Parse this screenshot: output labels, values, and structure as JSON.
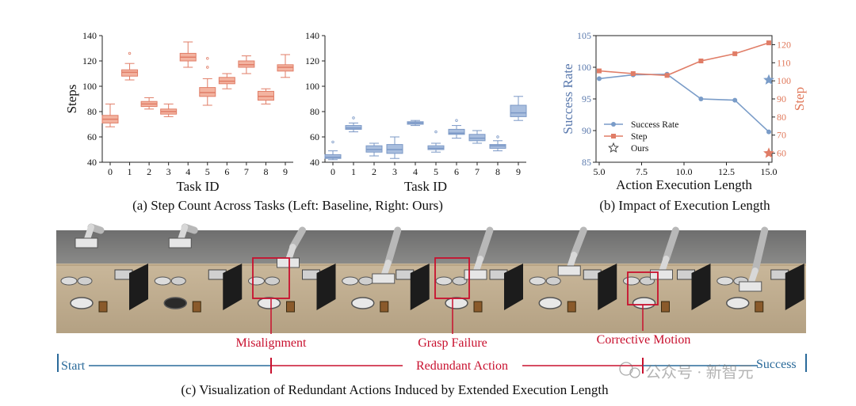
{
  "captions": {
    "a": "(a) Step Count Across Tasks (Left: Baseline, Right: Ours)",
    "b": "(b) Impact of Execution Length",
    "c": "(c)  Visualization of Redundant Actions Induced by Extended Execution Length"
  },
  "timeline": {
    "start": "Start",
    "success": "Success",
    "redundant": "Redundant Action",
    "labels": [
      "Misalignment",
      "Grasp Failure",
      "Corrective Motion"
    ]
  },
  "watermark": "公众号 · 新智元",
  "colors": {
    "baseline_fill": "#f3b3a0",
    "baseline_edge": "#e07d67",
    "ours_fill": "#a9bede",
    "ours_edge": "#7b98c6",
    "success_line": "#7a9cc8",
    "step_line": "#e07d67",
    "left_axis_text": "#5a79ad",
    "right_axis_text": "#e0785a",
    "highlight_red": "#c8102e",
    "timeline_blue": "#2a6a9a"
  },
  "chart_data": [
    {
      "type": "box",
      "name": "Baseline",
      "ylabel": "Steps",
      "xlabel": "Task ID",
      "ylim": [
        40,
        140
      ],
      "yticks": [
        40,
        60,
        80,
        100,
        120,
        140
      ],
      "categories": [
        "0",
        "1",
        "2",
        "3",
        "4",
        "5",
        "6",
        "7",
        "8",
        "9"
      ],
      "boxes": [
        {
          "min": 68,
          "q1": 71,
          "median": 74,
          "q3": 77,
          "max": 86,
          "outliers": []
        },
        {
          "min": 105,
          "q1": 108,
          "median": 111,
          "q3": 113,
          "max": 118,
          "outliers": [
            126
          ]
        },
        {
          "min": 82,
          "q1": 84,
          "median": 86,
          "q3": 88,
          "max": 91,
          "outliers": []
        },
        {
          "min": 76,
          "q1": 78,
          "median": 80,
          "q3": 82,
          "max": 86,
          "outliers": []
        },
        {
          "min": 115,
          "q1": 120,
          "median": 123,
          "q3": 126,
          "max": 135,
          "outliers": []
        },
        {
          "min": 85,
          "q1": 92,
          "median": 95,
          "q3": 99,
          "max": 106,
          "outliers": [
            115,
            122
          ]
        },
        {
          "min": 98,
          "q1": 102,
          "median": 104,
          "q3": 107,
          "max": 110,
          "outliers": []
        },
        {
          "min": 110,
          "q1": 115,
          "median": 117,
          "q3": 120,
          "max": 124,
          "outliers": []
        },
        {
          "min": 86,
          "q1": 89,
          "median": 92,
          "q3": 96,
          "max": 98,
          "outliers": []
        },
        {
          "min": 107,
          "q1": 112,
          "median": 115,
          "q3": 117,
          "max": 125,
          "outliers": []
        }
      ]
    },
    {
      "type": "box",
      "name": "Ours",
      "ylabel": "",
      "xlabel": "Task ID",
      "ylim": [
        40,
        140
      ],
      "yticks": [
        40,
        60,
        80,
        100,
        120,
        140
      ],
      "categories": [
        "0",
        "1",
        "2",
        "3",
        "4",
        "5",
        "6",
        "7",
        "8",
        "9"
      ],
      "boxes": [
        {
          "min": 42,
          "q1": 43,
          "median": 44,
          "q3": 46,
          "max": 49,
          "outliers": [
            56
          ]
        },
        {
          "min": 64,
          "q1": 66,
          "median": 67,
          "q3": 69,
          "max": 71,
          "outliers": [
            75
          ]
        },
        {
          "min": 45,
          "q1": 48,
          "median": 50,
          "q3": 53,
          "max": 55,
          "outliers": []
        },
        {
          "min": 43,
          "q1": 47,
          "median": 50,
          "q3": 54,
          "max": 60,
          "outliers": []
        },
        {
          "min": 69,
          "q1": 70,
          "median": 71,
          "q3": 72,
          "max": 73,
          "outliers": []
        },
        {
          "min": 48,
          "q1": 50,
          "median": 51,
          "q3": 53,
          "max": 55,
          "outliers": [
            64
          ]
        },
        {
          "min": 59,
          "q1": 62,
          "median": 63,
          "q3": 66,
          "max": 69,
          "outliers": [
            73
          ]
        },
        {
          "min": 55,
          "q1": 57,
          "median": 59,
          "q3": 62,
          "max": 65,
          "outliers": []
        },
        {
          "min": 49,
          "q1": 51,
          "median": 53,
          "q3": 54,
          "max": 57,
          "outliers": [
            60
          ]
        },
        {
          "min": 73,
          "q1": 76,
          "median": 79,
          "q3": 85,
          "max": 92,
          "outliers": []
        }
      ]
    },
    {
      "type": "line",
      "xlabel": "Action Execution Length",
      "xlim": [
        5.0,
        15.0
      ],
      "xticks": [
        "5.0",
        "7.5",
        "10.0",
        "12.5",
        "15.0"
      ],
      "left_axis": {
        "label": "Success Rate",
        "ylim": [
          85,
          105
        ],
        "ticks": [
          85,
          90,
          95,
          100,
          105
        ]
      },
      "right_axis": {
        "label": "Step",
        "ylim": [
          55,
          125
        ],
        "ticks": [
          60,
          70,
          80,
          90,
          100,
          110,
          120
        ]
      },
      "x": [
        5,
        7,
        9,
        11,
        13,
        15
      ],
      "series": [
        {
          "name": "Success Rate",
          "axis": "left",
          "marker": "circle",
          "values": [
            98.2,
            98.8,
            98.9,
            95.0,
            94.8,
            89.8
          ]
        },
        {
          "name": "Step",
          "axis": "right",
          "marker": "square",
          "values": [
            105.5,
            104,
            103,
            111,
            115,
            121
          ]
        }
      ],
      "ours_markers": [
        {
          "name": "Ours",
          "axis": "left",
          "x": 15,
          "value": 98.0
        },
        {
          "name": "Ours",
          "axis": "right",
          "x": 15,
          "value": 60
        }
      ],
      "legend": [
        "Success Rate",
        "Step",
        "Ours"
      ],
      "legend_position": "bottom-left"
    }
  ]
}
